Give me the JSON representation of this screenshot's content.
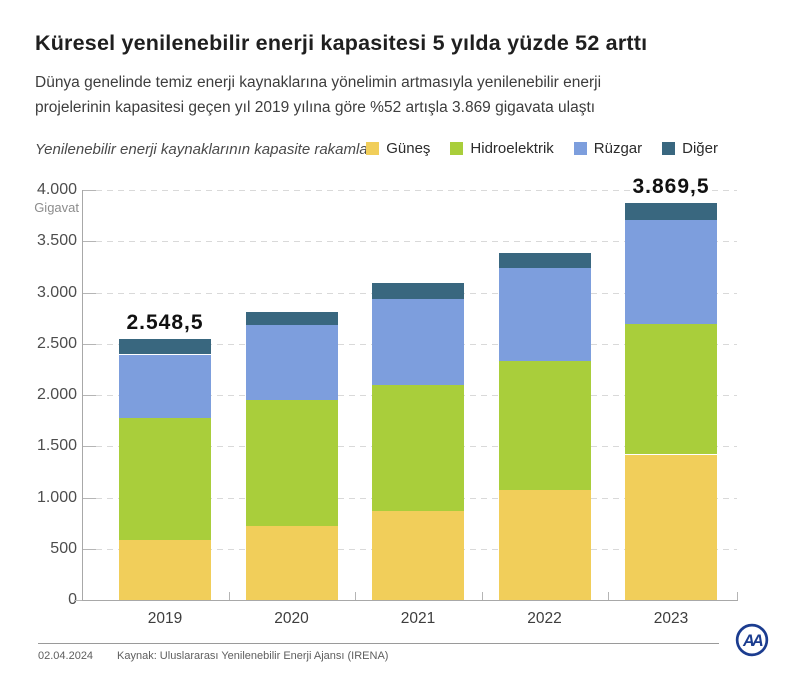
{
  "header": {
    "title": "Küresel yenilenebilir enerji kapasitesi 5 yılda yüzde 52 arttı",
    "subtitle": "Dünya genelinde temiz enerji kaynaklarına yönelimin artmasıyla yenilenebilir enerji projelerinin kapasitesi geçen yıl 2019 yılına göre %52 artışla 3.869 gigavata ulaştı"
  },
  "chart_caption": "Yenilenebilir enerji kaynaklarının kapasite rakamları",
  "legend": [
    {
      "label": "Güneş",
      "color": "#F1CE5A"
    },
    {
      "label": "Hidroelektrik",
      "color": "#A9CE3B"
    },
    {
      "label": "Rüzgar",
      "color": "#7D9EDD"
    },
    {
      "label": "Diğer",
      "color": "#39677F"
    }
  ],
  "chart_data": {
    "type": "bar",
    "stacked": true,
    "title": "Küresel yenilenebilir enerji kapasitesi 5 yılda yüzde 52 arttı",
    "categories": [
      "2019",
      "2020",
      "2021",
      "2022",
      "2023"
    ],
    "series": [
      {
        "name": "Güneş",
        "color": "#F1CE5A",
        "values": [
          590,
          725,
          870,
          1075,
          1420
        ]
      },
      {
        "name": "Hidroelektrik",
        "color": "#A9CE3B",
        "values": [
          1190,
          1225,
          1230,
          1255,
          1270
        ]
      },
      {
        "name": "Rüzgar",
        "color": "#7D9EDD",
        "values": [
          615,
          735,
          840,
          910,
          1020
        ]
      },
      {
        "name": "Diğer",
        "color": "#39677F",
        "values": [
          153.5,
          125,
          150,
          150,
          159.5
        ]
      }
    ],
    "totals": [
      2548.5,
      2810,
      3090,
      3390,
      3869.5
    ],
    "bar_labels": {
      "2019": "2.548,5",
      "2023": "3.869,5"
    },
    "xlabel": "",
    "ylabel": "Gigavat",
    "ylim": [
      0,
      4000
    ],
    "ytick_step": 500,
    "yticks": [
      "4.000",
      "3.500",
      "3.000",
      "2.500",
      "2.000",
      "1.500",
      "1.000",
      "500",
      "0"
    ],
    "grid": "horizontal-dashed",
    "legend_position": "top-right"
  },
  "footer": {
    "date": "02.04.2024",
    "source": "Kaynak: Uluslararası Yenilenebilir Enerji Ajansı (IRENA)",
    "logo": "AA",
    "logo_color": "#1B3C8F"
  }
}
